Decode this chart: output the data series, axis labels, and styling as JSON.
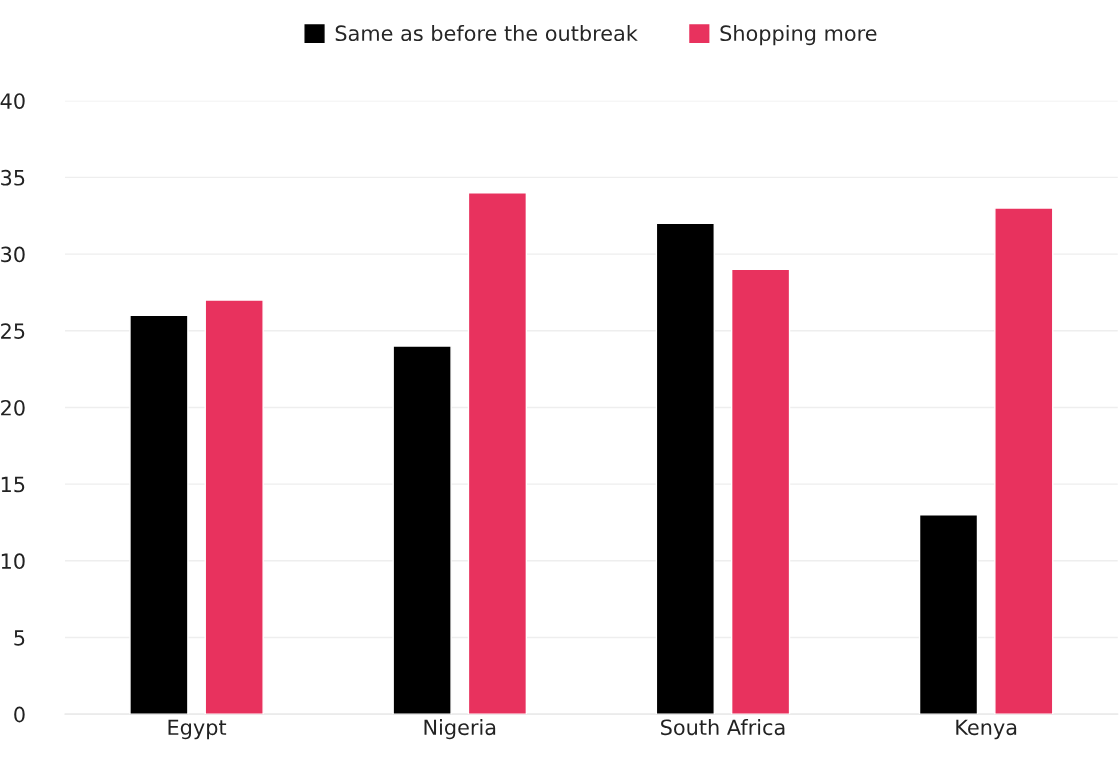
{
  "chart_data": {
    "type": "bar",
    "categories": [
      "Egypt",
      "Nigeria",
      "South Africa",
      "Kenya"
    ],
    "series": [
      {
        "name": "Same as before the outbreak",
        "color": "#000000",
        "values": [
          26,
          24,
          32,
          13
        ]
      },
      {
        "name": "Shopping more",
        "color": "#e8325e",
        "values": [
          27,
          34,
          29,
          33
        ]
      }
    ],
    "ylim": [
      0,
      40
    ],
    "yticks": [
      0,
      5,
      10,
      15,
      20,
      25,
      30,
      35,
      40
    ],
    "grid": "y",
    "legend": "top"
  }
}
